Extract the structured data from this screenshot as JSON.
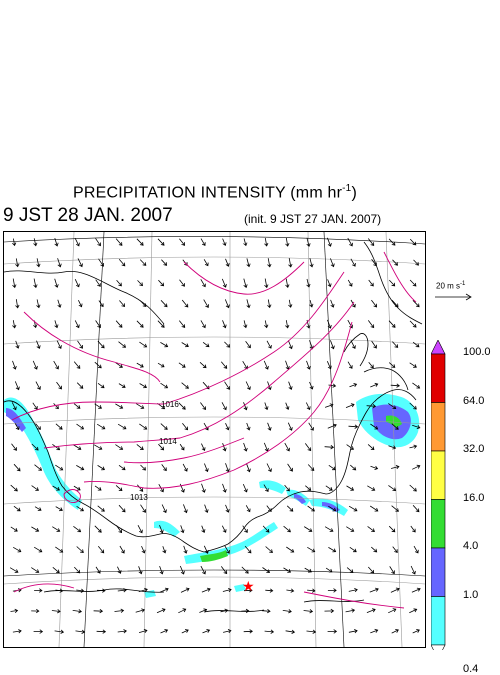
{
  "title": {
    "text": "PRECIPITATION INTENSITY (mm hr",
    "unit_exponent": "-1",
    "close": ")"
  },
  "valid_time": "9 JST 28 JAN. 2007",
  "init_time": "(init. 9 JST 27 JAN. 2007)",
  "wind_reference": {
    "label": "20 m s",
    "unit_exponent": "-1",
    "speed_ms": 20
  },
  "isobar_labels": [
    {
      "label": "1016"
    },
    {
      "label": "1014"
    },
    {
      "label": "1013"
    }
  ],
  "colorbar": {
    "levels": [
      {
        "label": "100.0",
        "color": "#e00000"
      },
      {
        "label": "64.0",
        "color": "#ff9933"
      },
      {
        "label": "32.0",
        "color": "#ffff44"
      },
      {
        "label": "16.0",
        "color": "#33dd33"
      },
      {
        "label": "4.0",
        "color": "#6666ff"
      },
      {
        "label": "1.0",
        "color": "#55ffff"
      },
      {
        "label": "0.4",
        "color": "#ffffff"
      }
    ],
    "over_color": "#cc44ff"
  },
  "colors": {
    "coastline": "#000000",
    "isobar": "#d0007a",
    "grid": "#999999",
    "wind_arrow": "#000000",
    "station_marker": "#ff0000"
  }
}
